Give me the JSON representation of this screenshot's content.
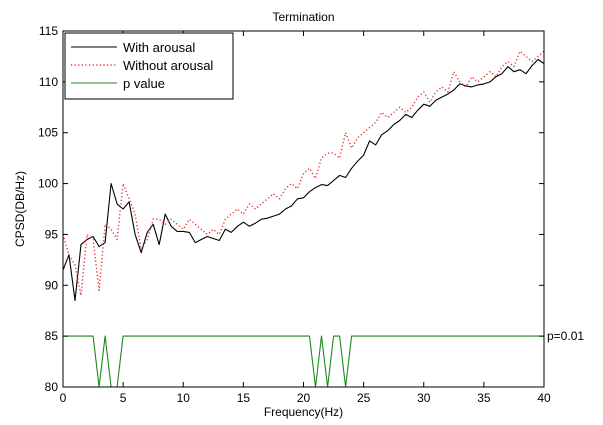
{
  "chart_data": {
    "type": "line",
    "title": "Termination",
    "xlabel": "Frequency(Hz)",
    "ylabel": "CPSD(DB/Hz)",
    "xlim": [
      0,
      40
    ],
    "ylim": [
      80,
      115
    ],
    "xticks": [
      0,
      5,
      10,
      15,
      20,
      25,
      30,
      35,
      40
    ],
    "yticks": [
      80,
      85,
      90,
      95,
      100,
      105,
      110,
      115
    ],
    "grid": false,
    "legend_position": "top-left",
    "annotation": {
      "text": "p=0.01",
      "x": 40,
      "y": 85
    },
    "series": [
      {
        "name": "With arousal",
        "color": "#000000",
        "style": "solid",
        "x": [
          0,
          0.5,
          1,
          1.5,
          2,
          2.5,
          3,
          3.5,
          4,
          4.5,
          5,
          5.5,
          6,
          6.5,
          7,
          7.5,
          8,
          8.5,
          9,
          9.5,
          10,
          10.5,
          11,
          11.5,
          12,
          12.5,
          13,
          13.5,
          14,
          14.5,
          15,
          15.5,
          16,
          16.5,
          17,
          17.5,
          18,
          18.5,
          19,
          19.5,
          20,
          20.5,
          21,
          21.5,
          22,
          22.5,
          23,
          23.5,
          24,
          24.5,
          25,
          25.5,
          26,
          26.5,
          27,
          27.5,
          28,
          28.5,
          29,
          29.5,
          30,
          30.5,
          31,
          31.5,
          32,
          32.5,
          33,
          33.5,
          34,
          34.5,
          35,
          35.5,
          36,
          36.5,
          37,
          37.5,
          38,
          38.5,
          39,
          39.5,
          40
        ],
        "values": [
          91.5,
          93,
          88.5,
          94,
          94.5,
          94.8,
          93.8,
          94.2,
          100,
          98,
          97.5,
          98.2,
          95,
          93.2,
          95.2,
          96,
          94,
          97,
          95.8,
          95.3,
          95.3,
          95.2,
          94.2,
          94.5,
          94.8,
          94.6,
          94.4,
          95.5,
          95.2,
          95.8,
          96.2,
          95.8,
          96.1,
          96.5,
          96.6,
          96.8,
          97,
          97.5,
          97.8,
          98.5,
          98.6,
          99.2,
          99.6,
          99.9,
          99.8,
          100.3,
          100.8,
          100.6,
          101.5,
          102.2,
          102.8,
          104.2,
          103.8,
          104.8,
          105.2,
          105.8,
          106.2,
          106.8,
          106.5,
          107.2,
          107.8,
          107.6,
          108.2,
          108.5,
          108.8,
          109.2,
          109.8,
          109.6,
          109.5,
          109.7,
          109.8,
          110,
          110.5,
          110.8,
          111.5,
          111,
          111.2,
          110.8,
          111.6,
          112.2,
          111.8
        ]
      },
      {
        "name": "Without arousal",
        "color": "#e0302a",
        "style": "dotted",
        "x": [
          0,
          0.5,
          1,
          1.5,
          2,
          2.5,
          3,
          3.5,
          4,
          4.5,
          5,
          5.5,
          6,
          6.5,
          7,
          7.5,
          8,
          8.5,
          9,
          9.5,
          10,
          10.5,
          11,
          11.5,
          12,
          12.5,
          13,
          13.5,
          14,
          14.5,
          15,
          15.5,
          16,
          16.5,
          17,
          17.5,
          18,
          18.5,
          19,
          19.5,
          20,
          20.5,
          21,
          21.5,
          22,
          22.5,
          23,
          23.5,
          24,
          24.5,
          25,
          25.5,
          26,
          26.5,
          27,
          27.5,
          28,
          28.5,
          29,
          29.5,
          30,
          30.5,
          31,
          31.5,
          32,
          32.5,
          33,
          33.5,
          34,
          34.5,
          35,
          35.5,
          36,
          36.5,
          37,
          37.5,
          38,
          38.5,
          39,
          39.5,
          40
        ],
        "values": [
          95,
          93,
          92,
          89,
          95,
          94.5,
          89.5,
          96,
          95.5,
          94.5,
          100,
          98.5,
          97,
          93.5,
          94.5,
          96.5,
          96.5,
          96,
          96.5,
          96,
          95.5,
          96.5,
          96,
          95.5,
          95,
          95.5,
          95,
          96.5,
          97,
          97.5,
          97,
          98,
          97.5,
          98,
          98.5,
          99,
          98.5,
          99.5,
          100,
          99.5,
          101,
          101.5,
          100.5,
          102.5,
          103,
          103,
          102.5,
          105,
          103.5,
          104.5,
          105,
          105.5,
          106,
          107,
          106.5,
          107,
          107.5,
          107,
          107.5,
          108.5,
          109,
          108,
          109,
          109.5,
          109,
          111,
          110,
          109.5,
          110.5,
          110,
          110.5,
          111,
          110.5,
          111.5,
          112,
          111.5,
          113,
          112.5,
          112,
          112.5,
          113
        ]
      },
      {
        "name": "p value",
        "color": "#1a8a1a",
        "style": "solid",
        "x": [
          0,
          2.5,
          3,
          3.5,
          4,
          4.5,
          5,
          20.5,
          21,
          21.5,
          22,
          22.5,
          23,
          23.5,
          24,
          40
        ],
        "values": [
          85,
          85,
          80,
          85,
          80,
          80,
          85,
          85,
          80,
          85,
          80,
          85,
          85,
          80,
          85,
          85
        ]
      }
    ]
  }
}
